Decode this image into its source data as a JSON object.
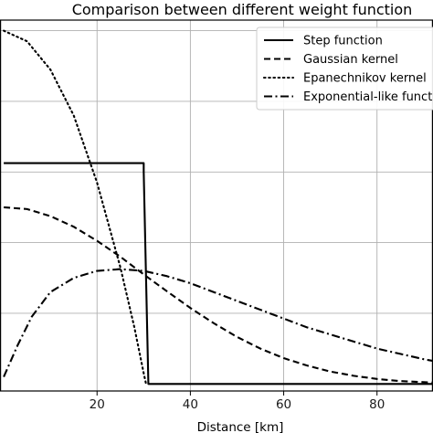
{
  "chart_data": {
    "type": "line",
    "title": "Comparison between different weight function",
    "xlabel": "Distance [km]",
    "ylabel": "",
    "xlim": [
      -0.8,
      92
    ],
    "ylim": [
      -0.02,
      1.03
    ],
    "grid": true,
    "legend_position": "top-right",
    "x_ticks": [
      20,
      40,
      60,
      80
    ],
    "x_tick_labels": [
      "20",
      "40",
      "60",
      "80"
    ],
    "y_gridlines": [
      0.2,
      0.4,
      0.6,
      0.8,
      1.0
    ],
    "series": [
      {
        "name": "Step function",
        "linestyle": "solid",
        "color": "#000000",
        "x": [
          0,
          30,
          30,
          31,
          31,
          92
        ],
        "y": [
          0.625,
          0.625,
          0.6,
          0.0,
          0.0,
          0.0
        ]
      },
      {
        "name": "Gaussian kernel",
        "linestyle": "dashed",
        "color": "#000000",
        "x": [
          0,
          5,
          10,
          15,
          20,
          25,
          30,
          35,
          40,
          45,
          50,
          55,
          60,
          65,
          70,
          75,
          80,
          85,
          90,
          92
        ],
        "y": [
          0.5,
          0.495,
          0.475,
          0.445,
          0.405,
          0.36,
          0.31,
          0.262,
          0.215,
          0.172,
          0.133,
          0.1,
          0.073,
          0.052,
          0.035,
          0.023,
          0.014,
          0.008,
          0.005,
          0.004
        ]
      },
      {
        "name": "Epanechnikov kernel",
        "linestyle": "dotted",
        "color": "#000000",
        "x": [
          0,
          5,
          10,
          15,
          20,
          25,
          28,
          30,
          30.5
        ],
        "y": [
          1.0,
          0.97,
          0.89,
          0.76,
          0.57,
          0.33,
          0.16,
          0.03,
          0.0
        ]
      },
      {
        "name": "Exponential-like function",
        "linestyle": "dashdot",
        "color": "#000000",
        "x": [
          0,
          3,
          6,
          10,
          15,
          20,
          25,
          30,
          35,
          40,
          45,
          50,
          55,
          60,
          65,
          70,
          75,
          80,
          85,
          90,
          92
        ],
        "y": [
          0.02,
          0.11,
          0.19,
          0.26,
          0.3,
          0.32,
          0.325,
          0.32,
          0.305,
          0.285,
          0.26,
          0.235,
          0.21,
          0.185,
          0.16,
          0.14,
          0.12,
          0.1,
          0.085,
          0.07,
          0.065
        ]
      }
    ]
  }
}
